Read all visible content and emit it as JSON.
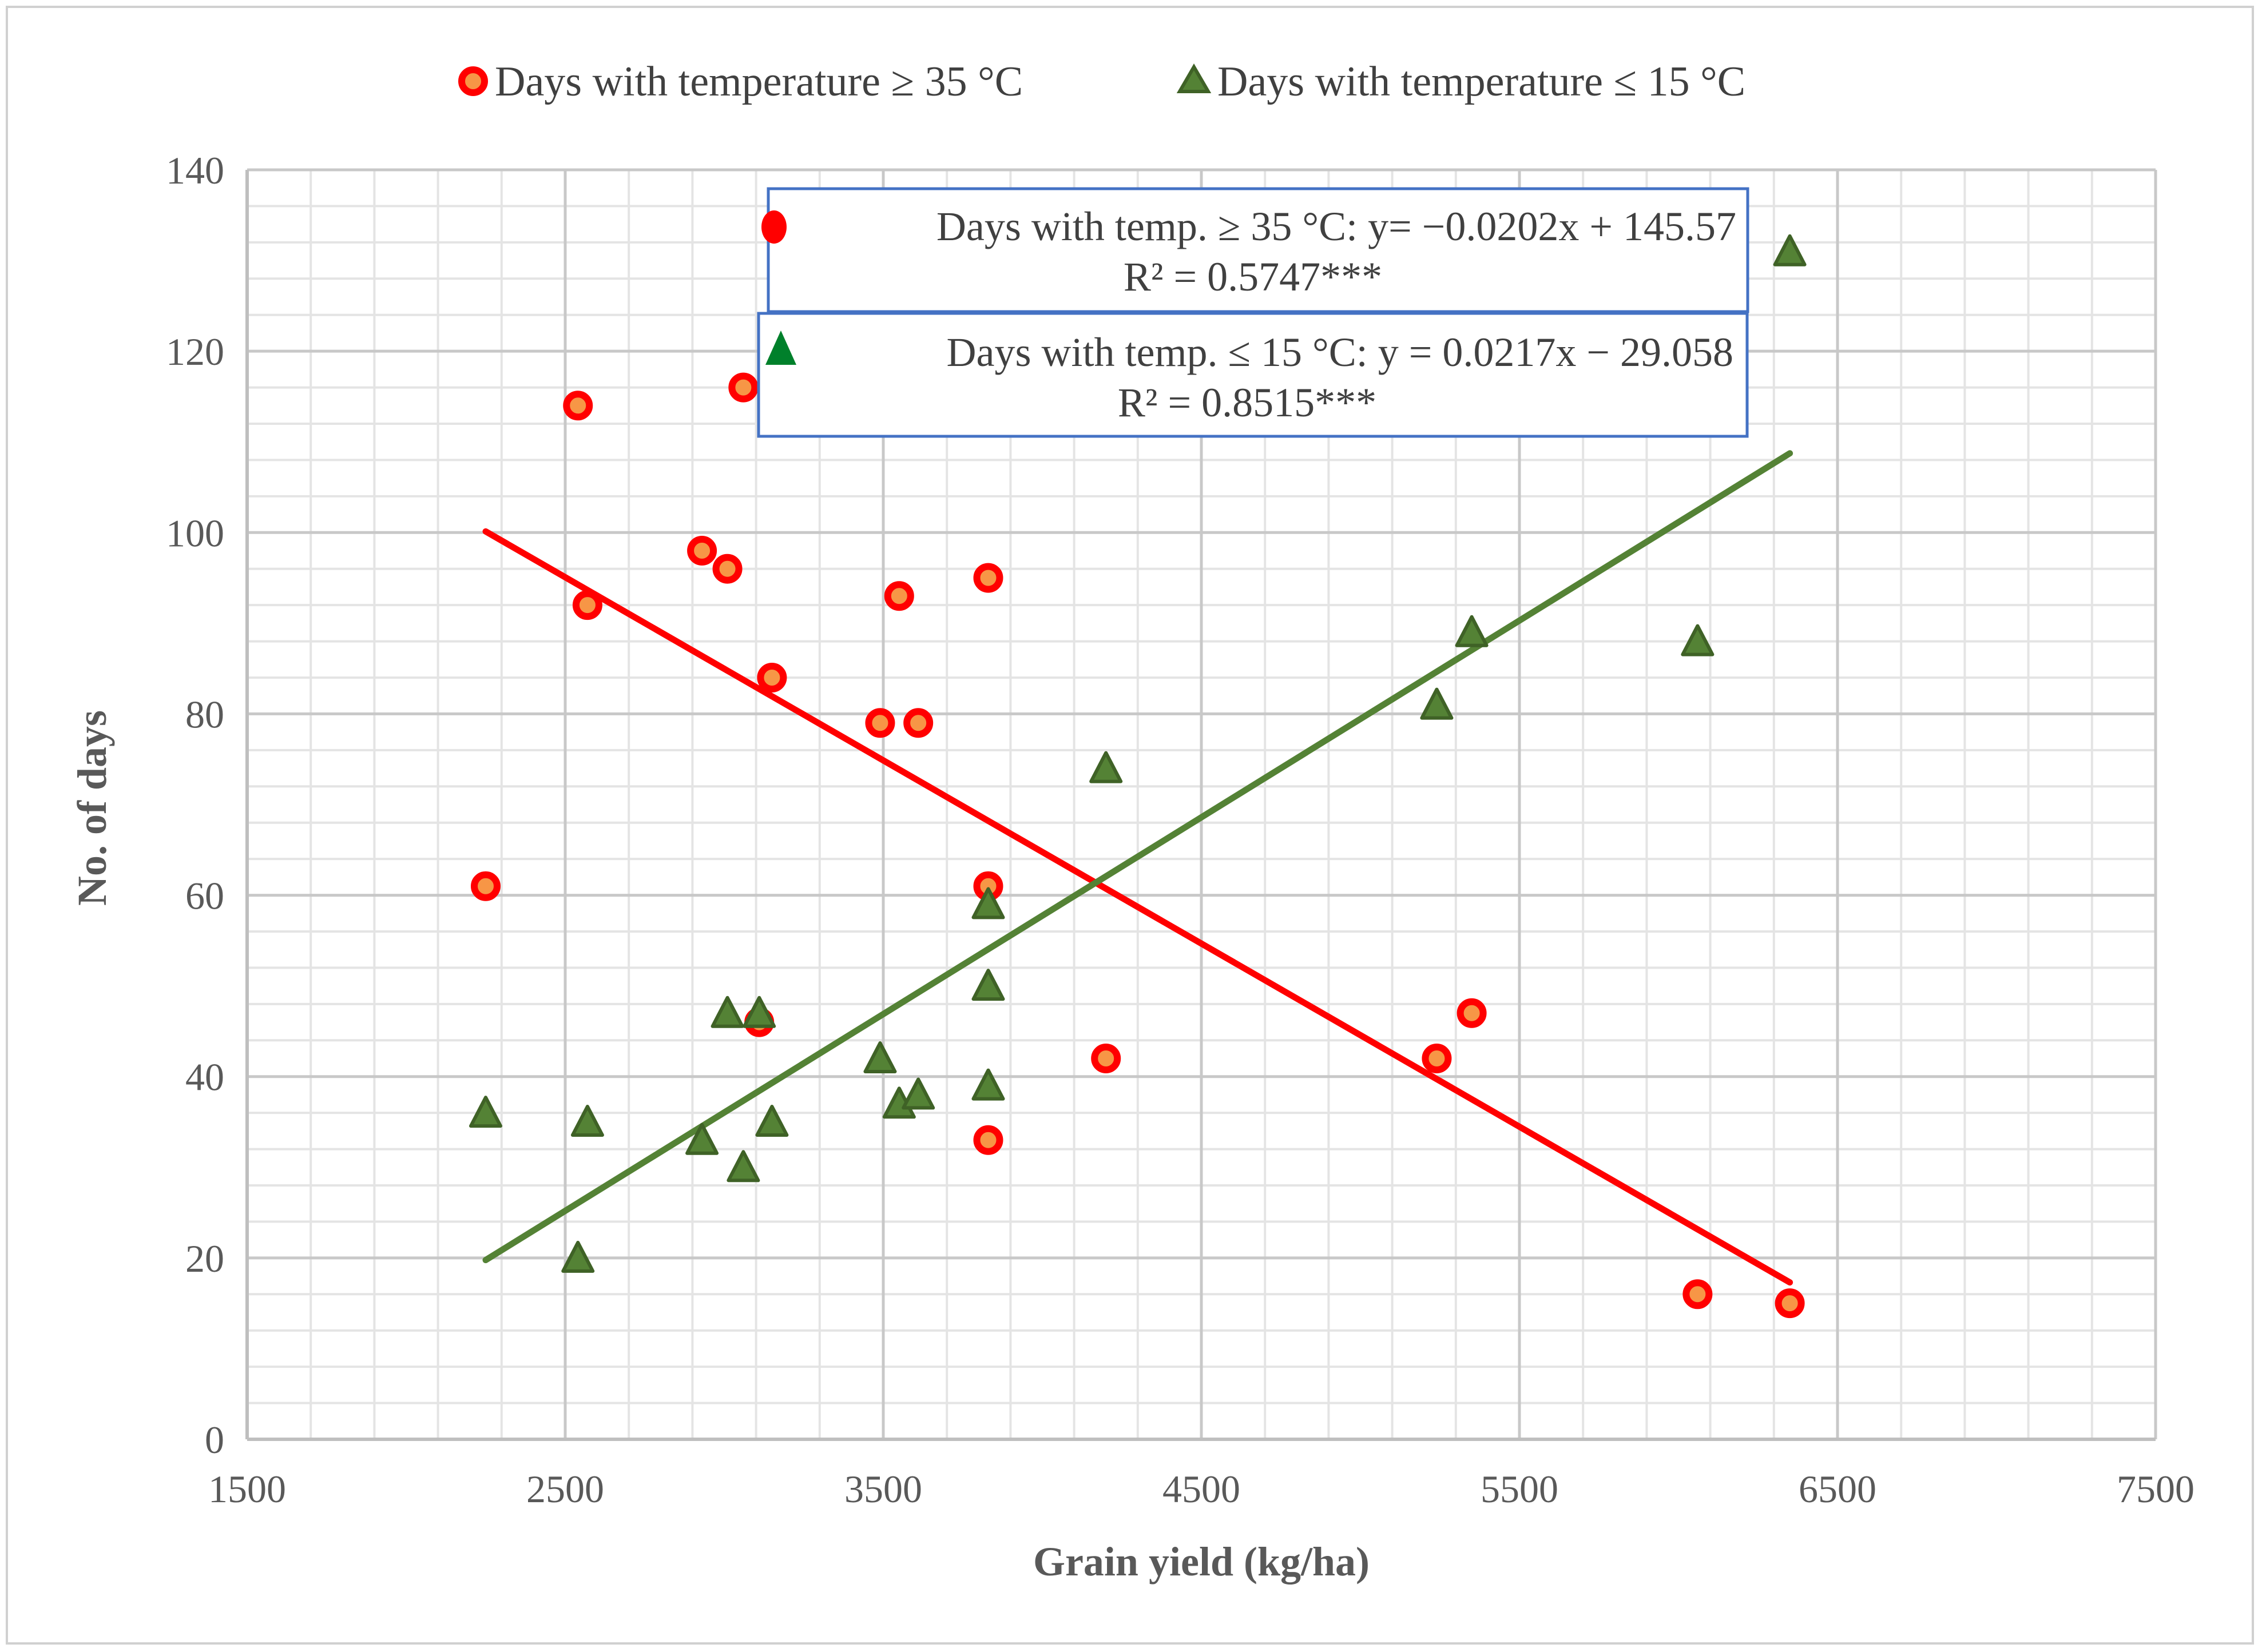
{
  "chart_data": {
    "type": "scatter",
    "title": "",
    "xlabel": "Grain yield (kg/ha)",
    "ylabel": "No. of days",
    "xlim": [
      1500,
      7500
    ],
    "ylim": [
      0,
      140
    ],
    "x_ticks": [
      "1500",
      "2500",
      "3500",
      "4500",
      "5500",
      "6500",
      "7500"
    ],
    "y_ticks": [
      "0",
      "20",
      "40",
      "60",
      "80",
      "100",
      "120",
      "140"
    ],
    "grid": true,
    "legend_position": "top",
    "series": [
      {
        "name": "Days with temperature ≥ 35 °C",
        "marker": "circle",
        "color": "#ff0000",
        "fill": "#f79646",
        "points": [
          [
            2250,
            61
          ],
          [
            2540,
            114
          ],
          [
            2570,
            92
          ],
          [
            2930,
            98
          ],
          [
            3010,
            96
          ],
          [
            3060,
            116
          ],
          [
            3110,
            46
          ],
          [
            3150,
            84
          ],
          [
            3490,
            79
          ],
          [
            3550,
            93
          ],
          [
            3610,
            79
          ],
          [
            3830,
            95
          ],
          [
            3830,
            61
          ],
          [
            3830,
            33
          ],
          [
            4200,
            42
          ],
          [
            5240,
            42
          ],
          [
            5350,
            47
          ],
          [
            6060,
            16
          ],
          [
            6350,
            15
          ]
        ],
        "trendline": {
          "slope": -0.0202,
          "intercept": 145.57,
          "x_range": [
            2250,
            6350
          ]
        }
      },
      {
        "name": "Days with  temperature ≤ 15 °C",
        "marker": "triangle",
        "color": "#548235",
        "fill": "#548235",
        "points": [
          [
            2250,
            36
          ],
          [
            2540,
            20
          ],
          [
            2570,
            35
          ],
          [
            2930,
            33
          ],
          [
            3010,
            47
          ],
          [
            3060,
            30
          ],
          [
            3110,
            47
          ],
          [
            3150,
            35
          ],
          [
            3490,
            42
          ],
          [
            3550,
            37
          ],
          [
            3610,
            38
          ],
          [
            3830,
            59
          ],
          [
            3830,
            50
          ],
          [
            3830,
            39
          ],
          [
            4200,
            74
          ],
          [
            5240,
            81
          ],
          [
            5350,
            89
          ],
          [
            6060,
            88
          ],
          [
            6350,
            131
          ]
        ],
        "trendline": {
          "slope": 0.0217,
          "intercept": -29.058,
          "x_range": [
            2250,
            6350
          ]
        }
      }
    ],
    "annotations": [
      {
        "series": 0,
        "line1": "Days with temp. ≥ 35 °C:  y= −0.0202x + 145.57",
        "line2": "R² = 0.5747***"
      },
      {
        "series": 1,
        "line1": "Days with  temp. ≤ 15 °C: y = 0.0217x − 29.058",
        "line2": "R² = 0.8515***"
      }
    ]
  }
}
